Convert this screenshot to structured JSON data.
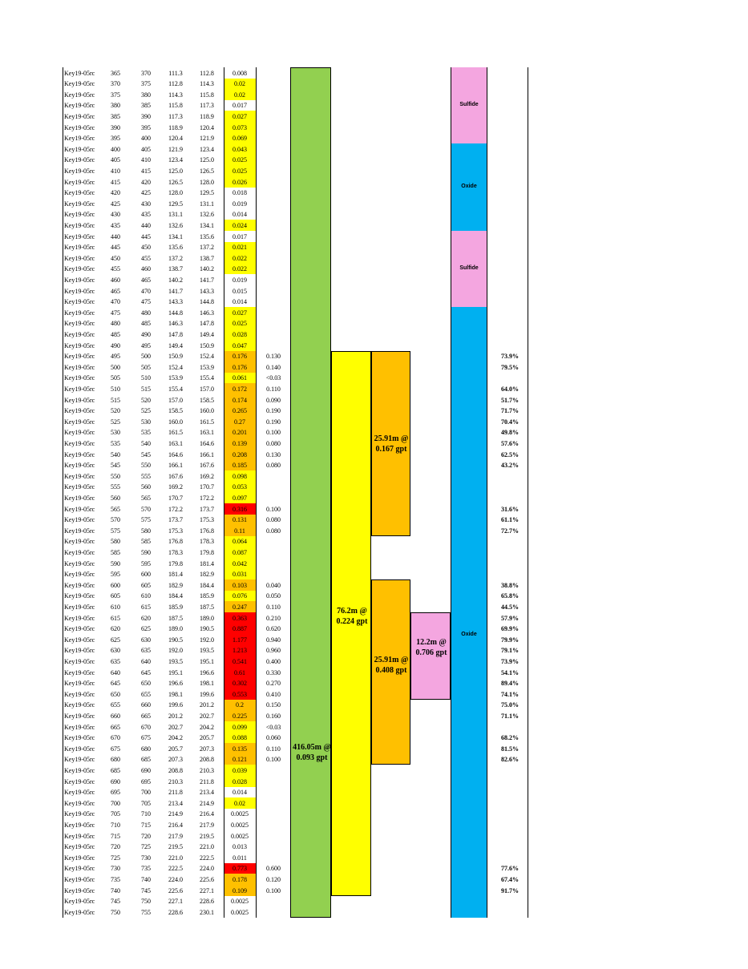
{
  "colors": {
    "trace": "#ffffff",
    "low": "#ffff00",
    "mid": "#ffc000",
    "high": "#ff0000",
    "long_interval": "#92d050",
    "mid_interval": "#ffff00",
    "sub_interval": "#ffc000",
    "best_interval": "#f4a6e0",
    "sulfide": "#f4a6e0",
    "oxide": "#00b0f0"
  },
  "rows": [
    {
      "hole": "Key19-05rc",
      "from_ft": "365",
      "to_ft": "370",
      "from_m": "111.3",
      "to_m": "112.8",
      "au": "0.008",
      "au2": "",
      "rec": "",
      "tier": "trace"
    },
    {
      "hole": "Key19-05rc",
      "from_ft": "370",
      "to_ft": "375",
      "from_m": "112.8",
      "to_m": "114.3",
      "au": "0.02",
      "au2": "",
      "rec": "",
      "tier": "low"
    },
    {
      "hole": "Key19-05rc",
      "from_ft": "375",
      "to_ft": "380",
      "from_m": "114.3",
      "to_m": "115.8",
      "au": "0.02",
      "au2": "",
      "rec": "",
      "tier": "low"
    },
    {
      "hole": "Key19-05rc",
      "from_ft": "380",
      "to_ft": "385",
      "from_m": "115.8",
      "to_m": "117.3",
      "au": "0.017",
      "au2": "",
      "rec": "",
      "tier": "trace"
    },
    {
      "hole": "Key19-05rc",
      "from_ft": "385",
      "to_ft": "390",
      "from_m": "117.3",
      "to_m": "118.9",
      "au": "0.027",
      "au2": "",
      "rec": "",
      "tier": "low"
    },
    {
      "hole": "Key19-05rc",
      "from_ft": "390",
      "to_ft": "395",
      "from_m": "118.9",
      "to_m": "120.4",
      "au": "0.073",
      "au2": "",
      "rec": "",
      "tier": "low"
    },
    {
      "hole": "Key19-05rc",
      "from_ft": "395",
      "to_ft": "400",
      "from_m": "120.4",
      "to_m": "121.9",
      "au": "0.069",
      "au2": "",
      "rec": "",
      "tier": "low"
    },
    {
      "hole": "Key19-05rc",
      "from_ft": "400",
      "to_ft": "405",
      "from_m": "121.9",
      "to_m": "123.4",
      "au": "0.043",
      "au2": "",
      "rec": "",
      "tier": "low"
    },
    {
      "hole": "Key19-05rc",
      "from_ft": "405",
      "to_ft": "410",
      "from_m": "123.4",
      "to_m": "125.0",
      "au": "0.025",
      "au2": "",
      "rec": "",
      "tier": "low"
    },
    {
      "hole": "Key19-05rc",
      "from_ft": "410",
      "to_ft": "415",
      "from_m": "125.0",
      "to_m": "126.5",
      "au": "0.025",
      "au2": "",
      "rec": "",
      "tier": "low"
    },
    {
      "hole": "Key19-05rc",
      "from_ft": "415",
      "to_ft": "420",
      "from_m": "126.5",
      "to_m": "128.0",
      "au": "0.026",
      "au2": "",
      "rec": "",
      "tier": "low"
    },
    {
      "hole": "Key19-05rc",
      "from_ft": "420",
      "to_ft": "425",
      "from_m": "128.0",
      "to_m": "129.5",
      "au": "0.018",
      "au2": "",
      "rec": "",
      "tier": "trace"
    },
    {
      "hole": "Key19-05rc",
      "from_ft": "425",
      "to_ft": "430",
      "from_m": "129.5",
      "to_m": "131.1",
      "au": "0.019",
      "au2": "",
      "rec": "",
      "tier": "trace"
    },
    {
      "hole": "Key19-05rc",
      "from_ft": "430",
      "to_ft": "435",
      "from_m": "131.1",
      "to_m": "132.6",
      "au": "0.014",
      "au2": "",
      "rec": "",
      "tier": "trace"
    },
    {
      "hole": "Key19-05rc",
      "from_ft": "435",
      "to_ft": "440",
      "from_m": "132.6",
      "to_m": "134.1",
      "au": "0.024",
      "au2": "",
      "rec": "",
      "tier": "low"
    },
    {
      "hole": "Key19-05rc",
      "from_ft": "440",
      "to_ft": "445",
      "from_m": "134.1",
      "to_m": "135.6",
      "au": "0.017",
      "au2": "",
      "rec": "",
      "tier": "trace"
    },
    {
      "hole": "Key19-05rc",
      "from_ft": "445",
      "to_ft": "450",
      "from_m": "135.6",
      "to_m": "137.2",
      "au": "0.021",
      "au2": "",
      "rec": "",
      "tier": "low"
    },
    {
      "hole": "Key19-05rc",
      "from_ft": "450",
      "to_ft": "455",
      "from_m": "137.2",
      "to_m": "138.7",
      "au": "0.022",
      "au2": "",
      "rec": "",
      "tier": "low"
    },
    {
      "hole": "Key19-05rc",
      "from_ft": "455",
      "to_ft": "460",
      "from_m": "138.7",
      "to_m": "140.2",
      "au": "0.022",
      "au2": "",
      "rec": "",
      "tier": "low"
    },
    {
      "hole": "Key19-05rc",
      "from_ft": "460",
      "to_ft": "465",
      "from_m": "140.2",
      "to_m": "141.7",
      "au": "0.019",
      "au2": "",
      "rec": "",
      "tier": "trace"
    },
    {
      "hole": "Key19-05rc",
      "from_ft": "465",
      "to_ft": "470",
      "from_m": "141.7",
      "to_m": "143.3",
      "au": "0.015",
      "au2": "",
      "rec": "",
      "tier": "trace"
    },
    {
      "hole": "Key19-05rc",
      "from_ft": "470",
      "to_ft": "475",
      "from_m": "143.3",
      "to_m": "144.8",
      "au": "0.014",
      "au2": "",
      "rec": "",
      "tier": "trace"
    },
    {
      "hole": "Key19-05rc",
      "from_ft": "475",
      "to_ft": "480",
      "from_m": "144.8",
      "to_m": "146.3",
      "au": "0.027",
      "au2": "",
      "rec": "",
      "tier": "low"
    },
    {
      "hole": "Key19-05rc",
      "from_ft": "480",
      "to_ft": "485",
      "from_m": "146.3",
      "to_m": "147.8",
      "au": "0.025",
      "au2": "",
      "rec": "",
      "tier": "low"
    },
    {
      "hole": "Key19-05rc",
      "from_ft": "485",
      "to_ft": "490",
      "from_m": "147.8",
      "to_m": "149.4",
      "au": "0.028",
      "au2": "",
      "rec": "",
      "tier": "low"
    },
    {
      "hole": "Key19-05rc",
      "from_ft": "490",
      "to_ft": "495",
      "from_m": "149.4",
      "to_m": "150.9",
      "au": "0.047",
      "au2": "",
      "rec": "",
      "tier": "low"
    },
    {
      "hole": "Key19-05rc",
      "from_ft": "495",
      "to_ft": "500",
      "from_m": "150.9",
      "to_m": "152.4",
      "au": "0.176",
      "au2": "0.130",
      "rec": "73.9%",
      "tier": "mid"
    },
    {
      "hole": "Key19-05rc",
      "from_ft": "500",
      "to_ft": "505",
      "from_m": "152.4",
      "to_m": "153.9",
      "au": "0.176",
      "au2": "0.140",
      "rec": "79.5%",
      "tier": "mid"
    },
    {
      "hole": "Key19-05rc",
      "from_ft": "505",
      "to_ft": "510",
      "from_m": "153.9",
      "to_m": "155.4",
      "au": "0.061",
      "au2": "<0.03",
      "rec": "",
      "tier": "low"
    },
    {
      "hole": "Key19-05rc",
      "from_ft": "510",
      "to_ft": "515",
      "from_m": "155.4",
      "to_m": "157.0",
      "au": "0.172",
      "au2": "0.110",
      "rec": "64.0%",
      "tier": "mid"
    },
    {
      "hole": "Key19-05rc",
      "from_ft": "515",
      "to_ft": "520",
      "from_m": "157.0",
      "to_m": "158.5",
      "au": "0.174",
      "au2": "0.090",
      "rec": "51.7%",
      "tier": "mid"
    },
    {
      "hole": "Key19-05rc",
      "from_ft": "520",
      "to_ft": "525",
      "from_m": "158.5",
      "to_m": "160.0",
      "au": "0.265",
      "au2": "0.190",
      "rec": "71.7%",
      "tier": "mid"
    },
    {
      "hole": "Key19-05rc",
      "from_ft": "525",
      "to_ft": "530",
      "from_m": "160.0",
      "to_m": "161.5",
      "au": "0.27",
      "au2": "0.190",
      "rec": "70.4%",
      "tier": "mid"
    },
    {
      "hole": "Key19-05rc",
      "from_ft": "530",
      "to_ft": "535",
      "from_m": "161.5",
      "to_m": "163.1",
      "au": "0.201",
      "au2": "0.100",
      "rec": "49.8%",
      "tier": "mid"
    },
    {
      "hole": "Key19-05rc",
      "from_ft": "535",
      "to_ft": "540",
      "from_m": "163.1",
      "to_m": "164.6",
      "au": "0.139",
      "au2": "0.080",
      "rec": "57.6%",
      "tier": "mid"
    },
    {
      "hole": "Key19-05rc",
      "from_ft": "540",
      "to_ft": "545",
      "from_m": "164.6",
      "to_m": "166.1",
      "au": "0.208",
      "au2": "0.130",
      "rec": "62.5%",
      "tier": "mid"
    },
    {
      "hole": "Key19-05rc",
      "from_ft": "545",
      "to_ft": "550",
      "from_m": "166.1",
      "to_m": "167.6",
      "au": "0.185",
      "au2": "0.080",
      "rec": "43.2%",
      "tier": "mid"
    },
    {
      "hole": "Key19-05rc",
      "from_ft": "550",
      "to_ft": "555",
      "from_m": "167.6",
      "to_m": "169.2",
      "au": "0.098",
      "au2": "",
      "rec": "",
      "tier": "low"
    },
    {
      "hole": "Key19-05rc",
      "from_ft": "555",
      "to_ft": "560",
      "from_m": "169.2",
      "to_m": "170.7",
      "au": "0.053",
      "au2": "",
      "rec": "",
      "tier": "low"
    },
    {
      "hole": "Key19-05rc",
      "from_ft": "560",
      "to_ft": "565",
      "from_m": "170.7",
      "to_m": "172.2",
      "au": "0.097",
      "au2": "",
      "rec": "",
      "tier": "low"
    },
    {
      "hole": "Key19-05rc",
      "from_ft": "565",
      "to_ft": "570",
      "from_m": "172.2",
      "to_m": "173.7",
      "au": "0.316",
      "au2": "0.100",
      "rec": "31.6%",
      "tier": "high"
    },
    {
      "hole": "Key19-05rc",
      "from_ft": "570",
      "to_ft": "575",
      "from_m": "173.7",
      "to_m": "175.3",
      "au": "0.131",
      "au2": "0.080",
      "rec": "61.1%",
      "tier": "mid"
    },
    {
      "hole": "Key19-05rc",
      "from_ft": "575",
      "to_ft": "580",
      "from_m": "175.3",
      "to_m": "176.8",
      "au": "0.11",
      "au2": "0.080",
      "rec": "72.7%",
      "tier": "mid"
    },
    {
      "hole": "Key19-05rc",
      "from_ft": "580",
      "to_ft": "585",
      "from_m": "176.8",
      "to_m": "178.3",
      "au": "0.064",
      "au2": "",
      "rec": "",
      "tier": "low"
    },
    {
      "hole": "Key19-05rc",
      "from_ft": "585",
      "to_ft": "590",
      "from_m": "178.3",
      "to_m": "179.8",
      "au": "0.087",
      "au2": "",
      "rec": "",
      "tier": "low"
    },
    {
      "hole": "Key19-05rc",
      "from_ft": "590",
      "to_ft": "595",
      "from_m": "179.8",
      "to_m": "181.4",
      "au": "0.042",
      "au2": "",
      "rec": "",
      "tier": "low"
    },
    {
      "hole": "Key19-05rc",
      "from_ft": "595",
      "to_ft": "600",
      "from_m": "181.4",
      "to_m": "182.9",
      "au": "0.031",
      "au2": "",
      "rec": "",
      "tier": "low"
    },
    {
      "hole": "Key19-05rc",
      "from_ft": "600",
      "to_ft": "605",
      "from_m": "182.9",
      "to_m": "184.4",
      "au": "0.103",
      "au2": "0.040",
      "rec": "38.8%",
      "tier": "mid"
    },
    {
      "hole": "Key19-05rc",
      "from_ft": "605",
      "to_ft": "610",
      "from_m": "184.4",
      "to_m": "185.9",
      "au": "0.076",
      "au2": "0.050",
      "rec": "65.8%",
      "tier": "low"
    },
    {
      "hole": "Key19-05rc",
      "from_ft": "610",
      "to_ft": "615",
      "from_m": "185.9",
      "to_m": "187.5",
      "au": "0.247",
      "au2": "0.110",
      "rec": "44.5%",
      "tier": "mid"
    },
    {
      "hole": "Key19-05rc",
      "from_ft": "615",
      "to_ft": "620",
      "from_m": "187.5",
      "to_m": "189.0",
      "au": "0.363",
      "au2": "0.210",
      "rec": "57.9%",
      "tier": "high"
    },
    {
      "hole": "Key19-05rc",
      "from_ft": "620",
      "to_ft": "625",
      "from_m": "189.0",
      "to_m": "190.5",
      "au": "0.887",
      "au2": "0.620",
      "rec": "69.9%",
      "tier": "high"
    },
    {
      "hole": "Key19-05rc",
      "from_ft": "625",
      "to_ft": "630",
      "from_m": "190.5",
      "to_m": "192.0",
      "au": "1.177",
      "au2": "0.940",
      "rec": "79.9%",
      "tier": "high"
    },
    {
      "hole": "Key19-05rc",
      "from_ft": "630",
      "to_ft": "635",
      "from_m": "192.0",
      "to_m": "193.5",
      "au": "1.213",
      "au2": "0.960",
      "rec": "79.1%",
      "tier": "high"
    },
    {
      "hole": "Key19-05rc",
      "from_ft": "635",
      "to_ft": "640",
      "from_m": "193.5",
      "to_m": "195.1",
      "au": "0.541",
      "au2": "0.400",
      "rec": "73.9%",
      "tier": "high"
    },
    {
      "hole": "Key19-05rc",
      "from_ft": "640",
      "to_ft": "645",
      "from_m": "195.1",
      "to_m": "196.6",
      "au": "0.61",
      "au2": "0.330",
      "rec": "54.1%",
      "tier": "high"
    },
    {
      "hole": "Key19-05rc",
      "from_ft": "645",
      "to_ft": "650",
      "from_m": "196.6",
      "to_m": "198.1",
      "au": "0.302",
      "au2": "0.270",
      "rec": "89.4%",
      "tier": "high"
    },
    {
      "hole": "Key19-05rc",
      "from_ft": "650",
      "to_ft": "655",
      "from_m": "198.1",
      "to_m": "199.6",
      "au": "0.553",
      "au2": "0.410",
      "rec": "74.1%",
      "tier": "high"
    },
    {
      "hole": "Key19-05rc",
      "from_ft": "655",
      "to_ft": "660",
      "from_m": "199.6",
      "to_m": "201.2",
      "au": "0.2",
      "au2": "0.150",
      "rec": "75.0%",
      "tier": "mid"
    },
    {
      "hole": "Key19-05rc",
      "from_ft": "660",
      "to_ft": "665",
      "from_m": "201.2",
      "to_m": "202.7",
      "au": "0.225",
      "au2": "0.160",
      "rec": "71.1%",
      "tier": "mid"
    },
    {
      "hole": "Key19-05rc",
      "from_ft": "665",
      "to_ft": "670",
      "from_m": "202.7",
      "to_m": "204.2",
      "au": "0.099",
      "au2": "<0.03",
      "rec": "",
      "tier": "low"
    },
    {
      "hole": "Key19-05rc",
      "from_ft": "670",
      "to_ft": "675",
      "from_m": "204.2",
      "to_m": "205.7",
      "au": "0.088",
      "au2": "0.060",
      "rec": "68.2%",
      "tier": "low"
    },
    {
      "hole": "Key19-05rc",
      "from_ft": "675",
      "to_ft": "680",
      "from_m": "205.7",
      "to_m": "207.3",
      "au": "0.135",
      "au2": "0.110",
      "rec": "81.5%",
      "tier": "mid"
    },
    {
      "hole": "Key19-05rc",
      "from_ft": "680",
      "to_ft": "685",
      "from_m": "207.3",
      "to_m": "208.8",
      "au": "0.121",
      "au2": "0.100",
      "rec": "82.6%",
      "tier": "mid"
    },
    {
      "hole": "Key19-05rc",
      "from_ft": "685",
      "to_ft": "690",
      "from_m": "208.8",
      "to_m": "210.3",
      "au": "0.039",
      "au2": "",
      "rec": "",
      "tier": "low"
    },
    {
      "hole": "Key19-05rc",
      "from_ft": "690",
      "to_ft": "695",
      "from_m": "210.3",
      "to_m": "211.8",
      "au": "0.028",
      "au2": "",
      "rec": "",
      "tier": "low"
    },
    {
      "hole": "Key19-05rc",
      "from_ft": "695",
      "to_ft": "700",
      "from_m": "211.8",
      "to_m": "213.4",
      "au": "0.014",
      "au2": "",
      "rec": "",
      "tier": "trace"
    },
    {
      "hole": "Key19-05rc",
      "from_ft": "700",
      "to_ft": "705",
      "from_m": "213.4",
      "to_m": "214.9",
      "au": "0.02",
      "au2": "",
      "rec": "",
      "tier": "low"
    },
    {
      "hole": "Key19-05rc",
      "from_ft": "705",
      "to_ft": "710",
      "from_m": "214.9",
      "to_m": "216.4",
      "au": "0.0025",
      "au2": "",
      "rec": "",
      "tier": "trace"
    },
    {
      "hole": "Key19-05rc",
      "from_ft": "710",
      "to_ft": "715",
      "from_m": "216.4",
      "to_m": "217.9",
      "au": "0.0025",
      "au2": "",
      "rec": "",
      "tier": "trace"
    },
    {
      "hole": "Key19-05rc",
      "from_ft": "715",
      "to_ft": "720",
      "from_m": "217.9",
      "to_m": "219.5",
      "au": "0.0025",
      "au2": "",
      "rec": "",
      "tier": "trace"
    },
    {
      "hole": "Key19-05rc",
      "from_ft": "720",
      "to_ft": "725",
      "from_m": "219.5",
      "to_m": "221.0",
      "au": "0.013",
      "au2": "",
      "rec": "",
      "tier": "trace"
    },
    {
      "hole": "Key19-05rc",
      "from_ft": "725",
      "to_ft": "730",
      "from_m": "221.0",
      "to_m": "222.5",
      "au": "0.011",
      "au2": "",
      "rec": "",
      "tier": "trace"
    },
    {
      "hole": "Key19-05rc",
      "from_ft": "730",
      "to_ft": "735",
      "from_m": "222.5",
      "to_m": "224.0",
      "au": "0.773",
      "au2": "0.600",
      "rec": "77.6%",
      "tier": "high"
    },
    {
      "hole": "Key19-05rc",
      "from_ft": "735",
      "to_ft": "740",
      "from_m": "224.0",
      "to_m": "225.6",
      "au": "0.178",
      "au2": "0.120",
      "rec": "67.4%",
      "tier": "mid"
    },
    {
      "hole": "Key19-05rc",
      "from_ft": "740",
      "to_ft": "745",
      "from_m": "225.6",
      "to_m": "227.1",
      "au": "0.109",
      "au2": "0.100",
      "rec": "91.7%",
      "tier": "mid"
    },
    {
      "hole": "Key19-05rc",
      "from_ft": "745",
      "to_ft": "750",
      "from_m": "227.1",
      "to_m": "228.6",
      "au": "0.0025",
      "au2": "",
      "rec": "",
      "tier": "trace"
    },
    {
      "hole": "Key19-05rc",
      "from_ft": "750",
      "to_ft": "755",
      "from_m": "228.6",
      "to_m": "230.1",
      "au": "0.0025",
      "au2": "",
      "rec": "",
      "tier": "trace"
    }
  ],
  "intervals": [
    {
      "text": "416.05m @ 0.093 gpt",
      "from_ft": "365",
      "to_ft": "755",
      "color": "long_interval",
      "col": "c1"
    },
    {
      "text": "76.2m @ 0.224 gpt",
      "from_ft": "495",
      "to_ft": "745",
      "color": "mid_interval",
      "col": "c2"
    },
    {
      "text": "25.91m @ 0.167 gpt",
      "from_ft": "495",
      "to_ft": "580",
      "color": "sub_interval",
      "col": "c3"
    },
    {
      "text": "25.91m @ 0.408 gpt",
      "from_ft": "600",
      "to_ft": "685",
      "color": "sub_interval",
      "col": "c3"
    },
    {
      "text": "12.2m @ 0.706 gpt",
      "from_ft": "615",
      "to_ft": "655",
      "color": "best_interval",
      "col": "c4"
    }
  ],
  "lithology": [
    {
      "label": "Sulfide",
      "from_ft": "365",
      "to_ft": "400",
      "color": "sulfide"
    },
    {
      "label": "Oxide",
      "from_ft": "400",
      "to_ft": "440",
      "color": "oxide"
    },
    {
      "label": "Sulfide",
      "from_ft": "440",
      "to_ft": "475",
      "color": "sulfide"
    },
    {
      "label": "Oxide",
      "from_ft": "475",
      "to_ft": "755",
      "color": "oxide"
    }
  ]
}
